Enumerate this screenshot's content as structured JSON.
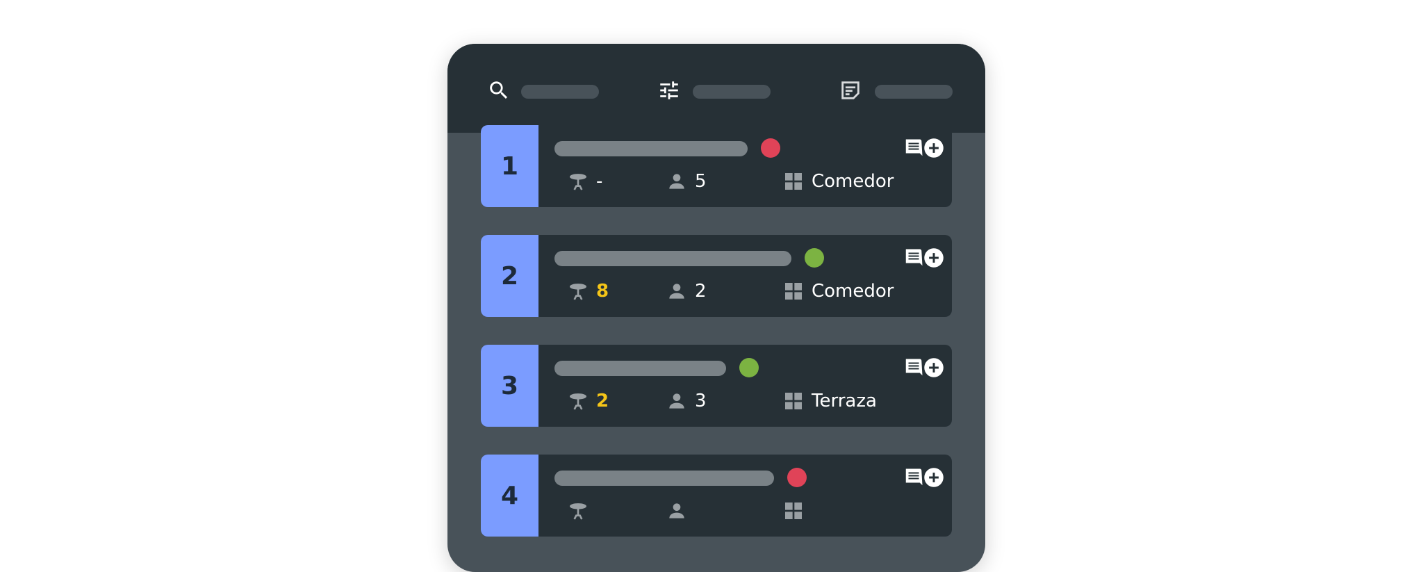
{
  "header": {
    "icons": [
      "search-icon",
      "tune-icon",
      "notes-icon"
    ]
  },
  "colors": {
    "accent": "#7b9cff",
    "status_red": "#e04358",
    "status_green": "#7cb342",
    "highlight": "#f5c518"
  },
  "reservations": [
    {
      "number": "1",
      "status": "red",
      "table": "-",
      "table_highlight": false,
      "guests": "5",
      "area": "Comedor"
    },
    {
      "number": "2",
      "status": "green",
      "table": "8",
      "table_highlight": true,
      "guests": "2",
      "area": "Comedor"
    },
    {
      "number": "3",
      "status": "green",
      "table": "2",
      "table_highlight": true,
      "guests": "3",
      "area": "Terraza"
    },
    {
      "number": "4",
      "status": "red",
      "table": "",
      "table_highlight": false,
      "guests": "",
      "area": ""
    }
  ]
}
